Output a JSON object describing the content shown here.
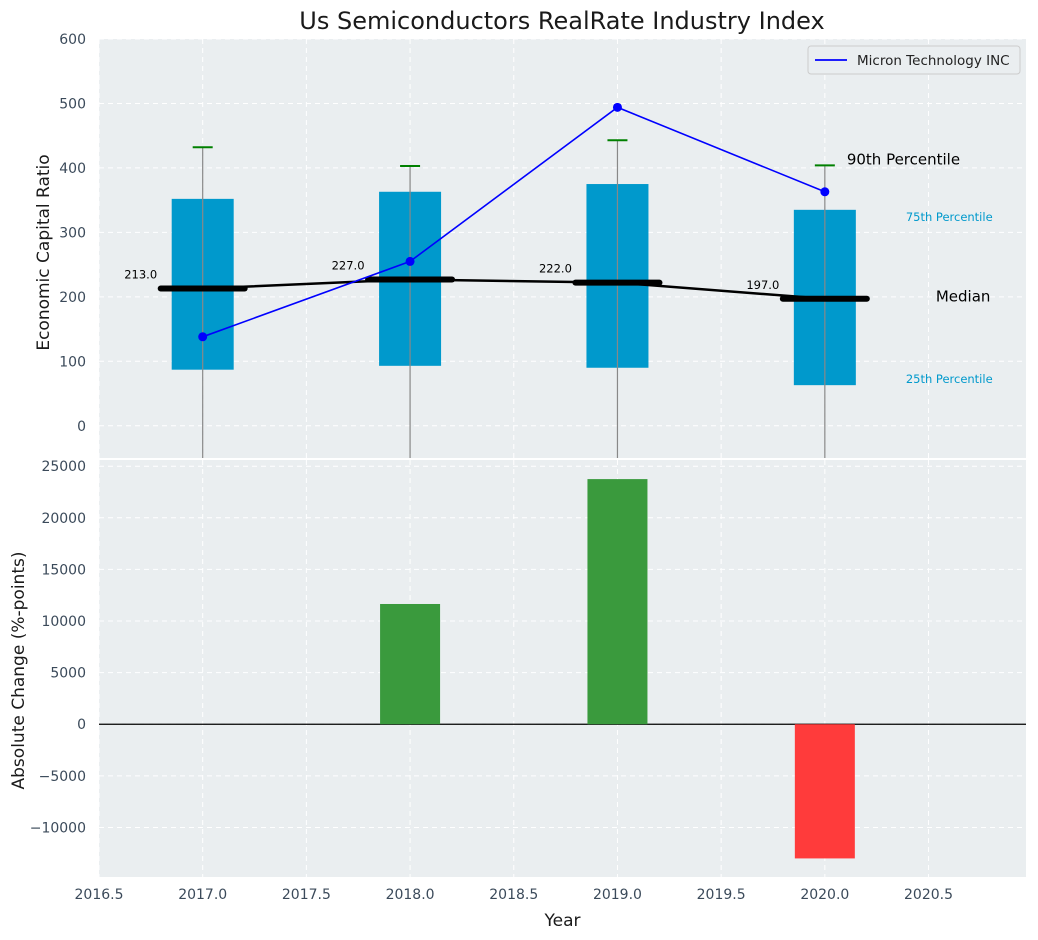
{
  "title": "Us Semiconductors RealRate Industry Index",
  "colors": {
    "panel_bg": "#eaeef0",
    "box": "#0099cc",
    "median": "#000000",
    "whisker_cap": "#008000",
    "company_line": "#0000ff",
    "pos_bar": "#3a9a3d",
    "neg_bar": "#ff3b3b",
    "p75_text": "#0099cc"
  },
  "chart_data": [
    {
      "type": "box",
      "ylabel": "Economic Capital Ratio",
      "ylim": [
        -50,
        600
      ],
      "yticks": [
        0,
        100,
        200,
        300,
        400,
        500,
        600
      ],
      "ytick_labels": [
        "0",
        "100",
        "200",
        "300",
        "400",
        "500",
        "600"
      ],
      "grid": true,
      "legend_position": "top-right",
      "x": [
        2017,
        2018,
        2019,
        2020
      ],
      "p25": [
        87,
        93,
        90,
        63
      ],
      "p75": [
        352,
        363,
        375,
        335
      ],
      "median": [
        213,
        227,
        222,
        197
      ],
      "median_labels": [
        "213.0",
        "227.0",
        "222.0",
        "197.0"
      ],
      "p90": [
        432,
        403,
        443,
        404
      ],
      "series": [
        {
          "name": "Micron Technology INC",
          "values": [
            138,
            255,
            494,
            363
          ]
        }
      ],
      "annotations": {
        "p90": "90th Percentile",
        "p75": "75th Percentile",
        "median": "Median",
        "p25": "25th Percentile"
      }
    },
    {
      "type": "bar",
      "xlabel": "Year",
      "ylabel": "Absolute Change (%-points)",
      "xlim": [
        2016.5,
        2020.97
      ],
      "xticks": [
        2016.5,
        2017.0,
        2017.5,
        2018.0,
        2018.5,
        2019.0,
        2019.5,
        2020.0,
        2020.5
      ],
      "xtick_labels": [
        "2016.5",
        "2017.0",
        "2017.5",
        "2018.0",
        "2018.5",
        "2019.0",
        "2019.5",
        "2020.0",
        "2020.5"
      ],
      "ylim": [
        -14800,
        25600
      ],
      "yticks": [
        -10000,
        -5000,
        0,
        5000,
        10000,
        15000,
        20000,
        25000
      ],
      "ytick_labels": [
        "−10000",
        "−5000",
        "0",
        "5000",
        "10000",
        "15000",
        "20000",
        "25000"
      ],
      "grid": true,
      "x": [
        2018,
        2019,
        2020
      ],
      "values": [
        11650,
        23750,
        -13000
      ]
    }
  ]
}
